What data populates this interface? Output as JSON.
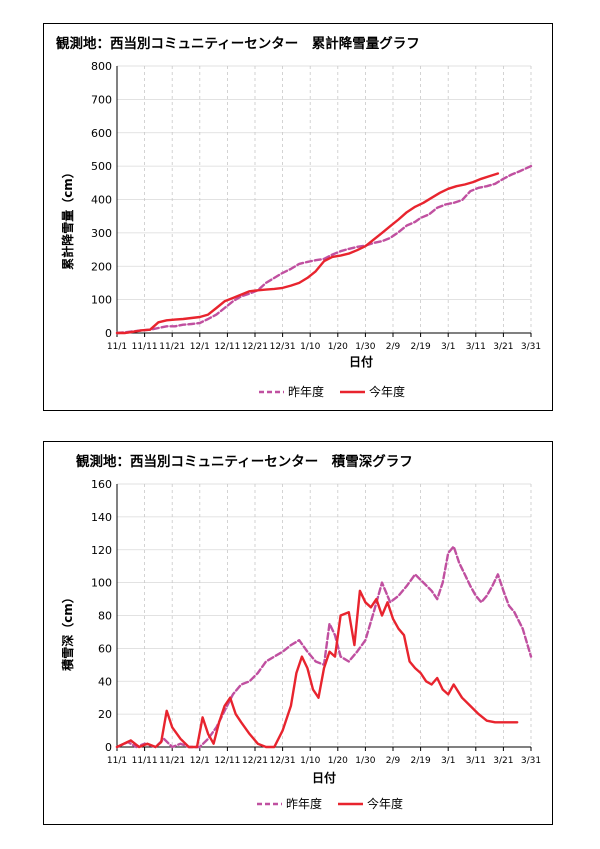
{
  "chart_data": [
    {
      "type": "line",
      "title": "観測地：西当別コミュニティーセンター　累計降雪量グラフ",
      "xlabel": "日付",
      "ylabel": "累計降雪量（cm）",
      "ylim": [
        0,
        800
      ],
      "yticks": [
        "0",
        "100",
        "200",
        "300",
        "400",
        "500",
        "600",
        "700",
        "800"
      ],
      "xticks": [
        "11/1",
        "11/11",
        "11/21",
        "12/1",
        "12/11",
        "12/21",
        "12/31",
        "1/10",
        "1/20",
        "1/30",
        "2/9",
        "2/19",
        "3/1",
        "3/11",
        "3/21",
        "3/31"
      ],
      "legend": "bottom",
      "series": [
        {
          "name": "昨年度",
          "color": "#c050a0",
          "dash": true,
          "x": [
            0,
            3,
            6,
            9,
            12,
            15,
            18,
            21,
            24,
            27,
            30,
            33,
            36,
            39,
            42,
            45,
            48,
            51,
            54,
            57,
            60,
            63,
            66,
            69,
            72,
            75,
            78,
            81,
            84,
            87,
            90,
            93,
            96,
            99,
            102,
            105,
            108,
            110,
            113,
            116,
            119,
            122,
            125,
            128,
            131,
            134,
            137,
            140,
            143,
            146,
            150
          ],
          "y": [
            0,
            2,
            5,
            8,
            10,
            15,
            20,
            20,
            25,
            27,
            30,
            42,
            55,
            75,
            95,
            110,
            118,
            128,
            150,
            165,
            180,
            192,
            207,
            213,
            218,
            222,
            235,
            245,
            252,
            258,
            262,
            270,
            275,
            285,
            302,
            322,
            333,
            345,
            355,
            375,
            385,
            390,
            398,
            425,
            435,
            440,
            447,
            462,
            475,
            485,
            500
          ]
        },
        {
          "name": "今年度",
          "color": "#e8242e",
          "dash": false,
          "x": [
            0,
            3,
            6,
            9,
            12,
            15,
            18,
            21,
            24,
            27,
            30,
            33,
            36,
            39,
            42,
            45,
            48,
            51,
            54,
            57,
            60,
            63,
            66,
            69,
            72,
            75,
            78,
            81,
            84,
            87,
            90,
            93,
            96,
            99,
            102,
            105,
            108,
            111,
            114,
            117,
            120,
            123,
            126,
            129,
            132,
            135,
            138
          ],
          "y": [
            0,
            0,
            4,
            8,
            10,
            32,
            38,
            40,
            42,
            45,
            48,
            55,
            75,
            95,
            105,
            115,
            125,
            128,
            130,
            132,
            135,
            142,
            150,
            165,
            185,
            215,
            228,
            232,
            238,
            248,
            260,
            280,
            300,
            320,
            340,
            362,
            378,
            390,
            405,
            420,
            432,
            440,
            445,
            452,
            462,
            470,
            478
          ]
        }
      ]
    },
    {
      "type": "line",
      "title": "観測地：西当別コミュニティーセンター　積雪深グラフ",
      "xlabel": "日付",
      "ylabel": "積雪深（cm）",
      "ylim": [
        0,
        160
      ],
      "yticks": [
        "0",
        "20",
        "40",
        "60",
        "80",
        "100",
        "120",
        "140",
        "160"
      ],
      "xticks": [
        "11/1",
        "11/11",
        "11/21",
        "12/1",
        "12/11",
        "12/21",
        "12/31",
        "1/10",
        "1/20",
        "1/30",
        "2/9",
        "2/19",
        "3/1",
        "3/11",
        "3/21",
        "3/31"
      ],
      "legend": "bottom",
      "series": [
        {
          "name": "昨年度",
          "color": "#c050a0",
          "dash": true,
          "x": [
            0,
            4,
            7,
            10,
            14,
            17,
            20,
            23,
            26,
            30,
            33,
            36,
            39,
            42,
            45,
            48,
            51,
            54,
            57,
            60,
            63,
            66,
            69,
            72,
            75,
            77,
            79,
            81,
            84,
            87,
            90,
            93,
            96,
            99,
            102,
            105,
            108,
            111,
            114,
            116,
            118,
            120,
            122,
            124,
            126,
            128,
            130,
            132,
            134,
            136,
            138,
            140,
            142,
            144,
            147,
            150
          ],
          "y": [
            0,
            3,
            0,
            2,
            0,
            5,
            0,
            2,
            0,
            0,
            5,
            12,
            22,
            32,
            38,
            40,
            45,
            52,
            55,
            58,
            62,
            65,
            58,
            52,
            50,
            75,
            68,
            55,
            52,
            58,
            65,
            82,
            100,
            88,
            92,
            98,
            105,
            100,
            95,
            90,
            100,
            118,
            122,
            112,
            105,
            98,
            92,
            88,
            92,
            98,
            105,
            95,
            86,
            82,
            72,
            55
          ]
        },
        {
          "name": "今年度",
          "color": "#e8242e",
          "dash": false,
          "x": [
            0,
            5,
            8,
            11,
            14,
            16,
            18,
            20,
            23,
            26,
            29,
            31,
            33,
            35,
            37,
            39,
            41,
            43,
            45,
            48,
            51,
            54,
            57,
            60,
            63,
            65,
            67,
            69,
            71,
            73,
            75,
            77,
            79,
            81,
            84,
            86,
            88,
            90,
            92,
            94,
            96,
            98,
            100,
            102,
            104,
            106,
            108,
            110,
            112,
            114,
            116,
            118,
            120,
            122,
            125,
            128,
            131,
            134,
            137,
            140,
            143,
            145
          ],
          "y": [
            0,
            4,
            0,
            2,
            0,
            3,
            22,
            12,
            5,
            0,
            0,
            18,
            8,
            2,
            15,
            25,
            30,
            20,
            15,
            8,
            2,
            0,
            0,
            10,
            25,
            45,
            55,
            48,
            35,
            30,
            48,
            58,
            55,
            80,
            82,
            62,
            95,
            88,
            85,
            90,
            80,
            88,
            78,
            72,
            68,
            52,
            48,
            45,
            40,
            38,
            42,
            35,
            32,
            38,
            30,
            25,
            20,
            16,
            15,
            15,
            15,
            15
          ]
        }
      ]
    }
  ]
}
